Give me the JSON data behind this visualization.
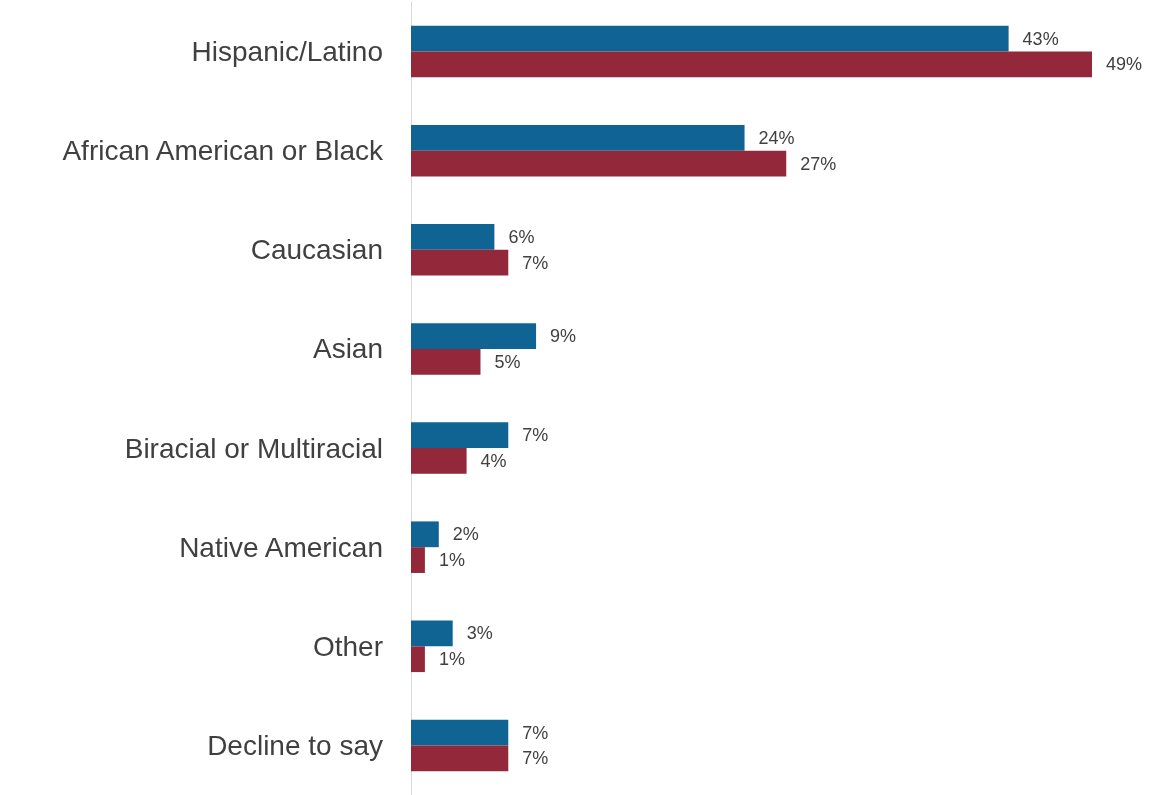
{
  "chart_data": {
    "type": "bar",
    "orientation": "horizontal",
    "categories": [
      "Hispanic/Latino",
      "African American or Black",
      "Caucasian",
      "Asian",
      "Biracial or Multiracial",
      "Native American",
      "Other",
      "Decline to say"
    ],
    "series": [
      {
        "color": "#0f6494",
        "values": [
          43,
          24,
          6,
          9,
          7,
          2,
          3,
          7
        ],
        "value_labels": [
          "43%",
          "24%",
          "6%",
          "9%",
          "7%",
          "2%",
          "3%",
          "7%"
        ]
      },
      {
        "color": "#92283a",
        "values": [
          49,
          27,
          7,
          5,
          4,
          1,
          1,
          7
        ],
        "value_labels": [
          "49%",
          "27%",
          "7%",
          "5%",
          "4%",
          "1%",
          "1%",
          "7%"
        ]
      }
    ]
  }
}
